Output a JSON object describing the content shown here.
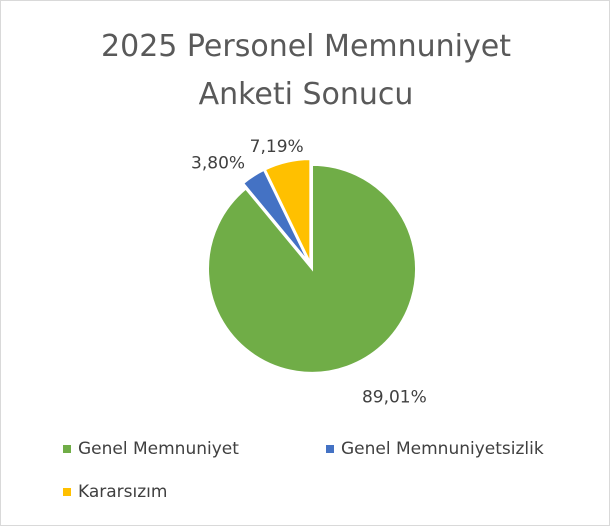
{
  "chart_data": {
    "type": "pie",
    "title": "2025 Personel Memnuniyet Anketi Sonucu",
    "categories": [
      "Genel Memnuniyet",
      "Genel Memnuniyetsizlik",
      "Kararsızım"
    ],
    "values": [
      89.01,
      3.8,
      7.19
    ],
    "value_labels": [
      "89,01%",
      "3,80%",
      "7,19%"
    ],
    "colors": [
      "#70ad47",
      "#4472c4",
      "#ffc000"
    ],
    "legend": "bottom"
  }
}
